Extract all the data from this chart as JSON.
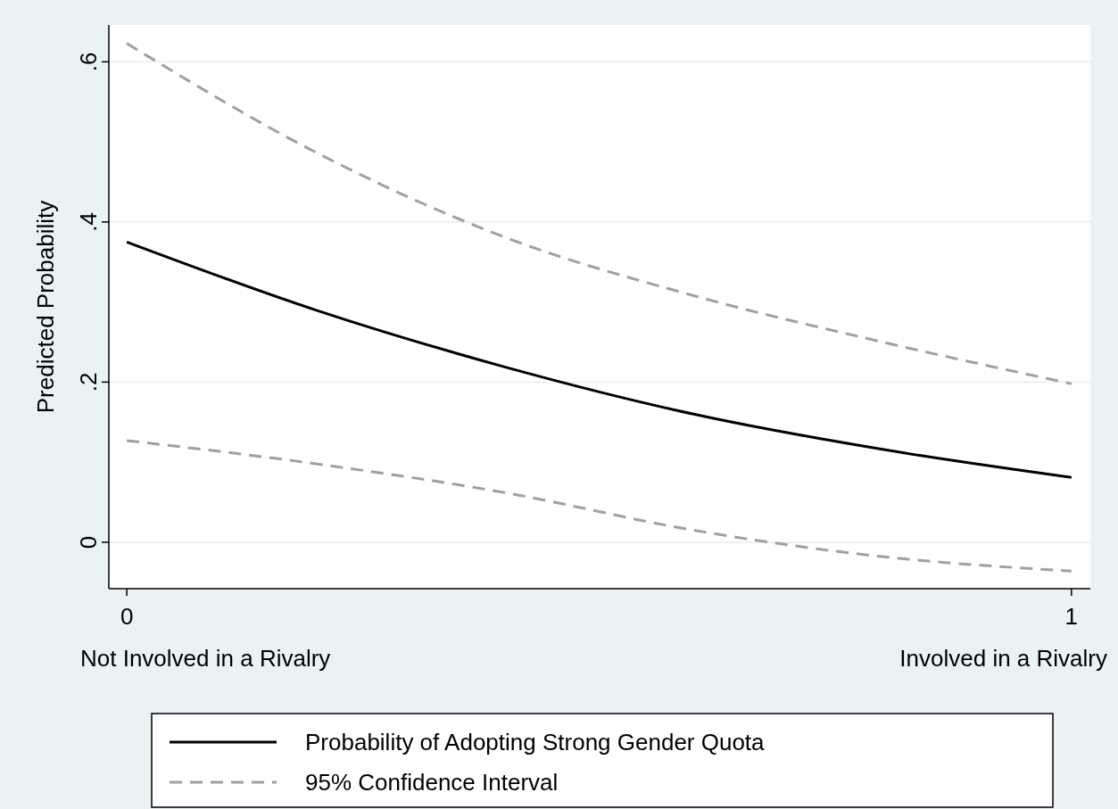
{
  "chart_data": {
    "type": "line",
    "ylabel": "Predicted Probability",
    "x": [
      0,
      0.2,
      0.4,
      0.6,
      0.8,
      1
    ],
    "series": [
      {
        "name": "Probability of Adopting Strong Gender Quota",
        "color": "#000000",
        "line_style": "solid",
        "values": [
          0.375,
          0.29,
          0.219,
          0.16,
          0.116,
          0.081
        ]
      },
      {
        "name": "95% Confidence Interval",
        "color": "#a0a0a0",
        "line_style": "dashed",
        "values": [
          0.623,
          0.487,
          0.381,
          0.308,
          0.25,
          0.198
        ]
      },
      {
        "color": "#a0a0a0",
        "line_style": "dashed",
        "values": [
          0.127,
          0.098,
          0.062,
          0.015,
          -0.018,
          -0.036
        ]
      }
    ],
    "xlim": [
      -0.019,
      1.02
    ],
    "ylim": [
      -0.058,
      0.646
    ],
    "xticks": [
      0,
      1
    ],
    "yticks": [
      {
        "value": 0,
        "label": "0"
      },
      {
        "value": 0.2,
        "label": ".2"
      },
      {
        "value": 0.4,
        "label": ".4"
      },
      {
        "value": 0.6,
        "label": ".6"
      }
    ],
    "grid": "y",
    "legend": "bottom",
    "marker": "none",
    "annotations": [
      "Not Involved in a Rivalry",
      "Involved in a Rivalry"
    ]
  }
}
